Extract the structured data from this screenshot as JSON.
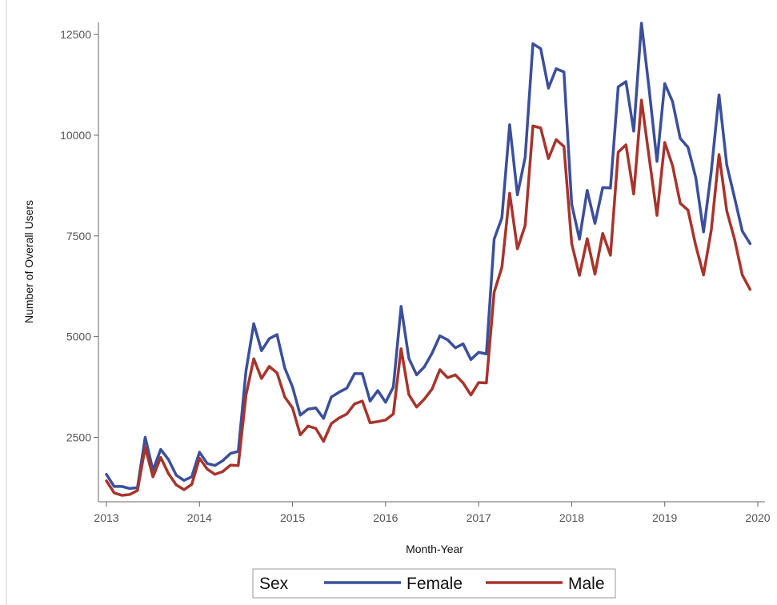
{
  "chart_data": {
    "type": "line",
    "xlabel": "Month-Year",
    "ylabel": "Number of Overall Users",
    "xlim": [
      2013,
      2020
    ],
    "ylim": [
      900,
      12800
    ],
    "x_ticks": [
      2013,
      2014,
      2015,
      2016,
      2017,
      2018,
      2019,
      2020
    ],
    "x_tick_labels": [
      "2013",
      "2014",
      "2015",
      "2016",
      "2017",
      "2018",
      "2019",
      "2020"
    ],
    "y_ticks": [
      2500,
      5000,
      7500,
      10000,
      12500
    ],
    "y_tick_labels": [
      "2500",
      "5000",
      "7500",
      "10000",
      "12500"
    ],
    "grid": false,
    "legend": {
      "title": "Sex",
      "placement": "bottom"
    },
    "x_start": 2013,
    "x_step_months": 1,
    "series": [
      {
        "name": "Female",
        "color": "#3b4f9c",
        "values": [
          1580,
          1280,
          1280,
          1230,
          1250,
          2500,
          1680,
          2200,
          1950,
          1560,
          1430,
          1520,
          2130,
          1850,
          1800,
          1920,
          2100,
          2150,
          4150,
          5320,
          4650,
          4950,
          5050,
          4220,
          3750,
          3050,
          3200,
          3230,
          2970,
          3500,
          3620,
          3720,
          4080,
          4080,
          3400,
          3660,
          3370,
          3750,
          5750,
          4460,
          4050,
          4250,
          4590,
          5020,
          4920,
          4720,
          4820,
          4430,
          4610,
          4570,
          7420,
          7950,
          10260,
          8520,
          9450,
          12270,
          12150,
          11170,
          11650,
          11570,
          8290,
          7420,
          8630,
          7810,
          8700,
          8690,
          11200,
          11330,
          10100,
          12780,
          11120,
          9350,
          11280,
          10840,
          9920,
          9700,
          8950,
          7600,
          9100,
          11000,
          9260,
          8450,
          7620,
          7310
        ]
      },
      {
        "name": "Male",
        "color": "#a8342b",
        "values": [
          1420,
          1120,
          1060,
          1080,
          1180,
          2250,
          1520,
          2000,
          1600,
          1320,
          1200,
          1330,
          1980,
          1710,
          1580,
          1650,
          1810,
          1800,
          3550,
          4450,
          3960,
          4260,
          4100,
          3500,
          3230,
          2560,
          2780,
          2720,
          2400,
          2840,
          2980,
          3080,
          3330,
          3400,
          2860,
          2890,
          2930,
          3080,
          4700,
          3560,
          3250,
          3450,
          3700,
          4180,
          3980,
          4050,
          3850,
          3550,
          3860,
          3850,
          6100,
          6720,
          8560,
          7180,
          7760,
          10230,
          10180,
          9420,
          9890,
          9720,
          7310,
          6520,
          7430,
          6550,
          7560,
          7020,
          9580,
          9760,
          8540,
          10870,
          9430,
          8010,
          9820,
          9250,
          8310,
          8140,
          7260,
          6530,
          7640,
          9520,
          8120,
          7420,
          6530,
          6170
        ]
      }
    ]
  }
}
